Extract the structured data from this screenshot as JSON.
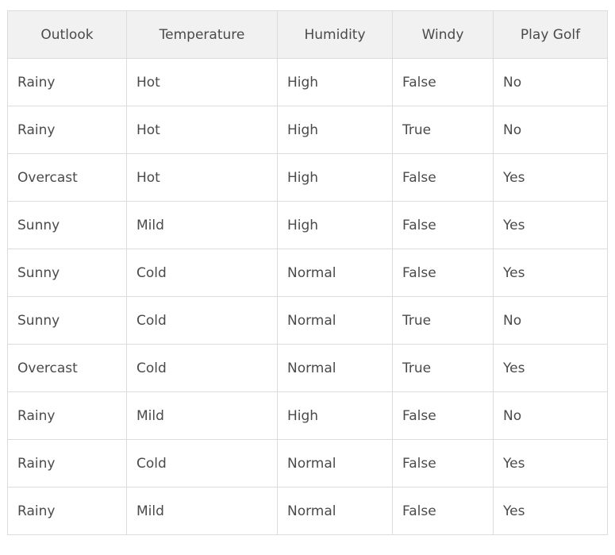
{
  "table": {
    "headers": [
      "Outlook",
      "Temperature",
      "Humidity",
      "Windy",
      "Play Golf"
    ],
    "rows": [
      [
        "Rainy",
        "Hot",
        "High",
        "False",
        "No"
      ],
      [
        "Rainy",
        "Hot",
        "High",
        "True",
        "No"
      ],
      [
        "Overcast",
        "Hot",
        "High",
        "False",
        "Yes"
      ],
      [
        "Sunny",
        "Mild",
        "High",
        "False",
        "Yes"
      ],
      [
        "Sunny",
        "Cold",
        "Normal",
        "False",
        "Yes"
      ],
      [
        "Sunny",
        "Cold",
        "Normal",
        "True",
        "No"
      ],
      [
        "Overcast",
        "Cold",
        "Normal",
        "True",
        "Yes"
      ],
      [
        "Rainy",
        "Mild",
        "High",
        "False",
        "No"
      ],
      [
        "Rainy",
        "Cold",
        "Normal",
        "False",
        "Yes"
      ],
      [
        "Rainy",
        "Mild",
        "Normal",
        "False",
        "Yes"
      ]
    ]
  },
  "colors": {
    "header_background": "#f1f1f1",
    "border": "#dcdcdc",
    "text": "#4a4a4a"
  }
}
